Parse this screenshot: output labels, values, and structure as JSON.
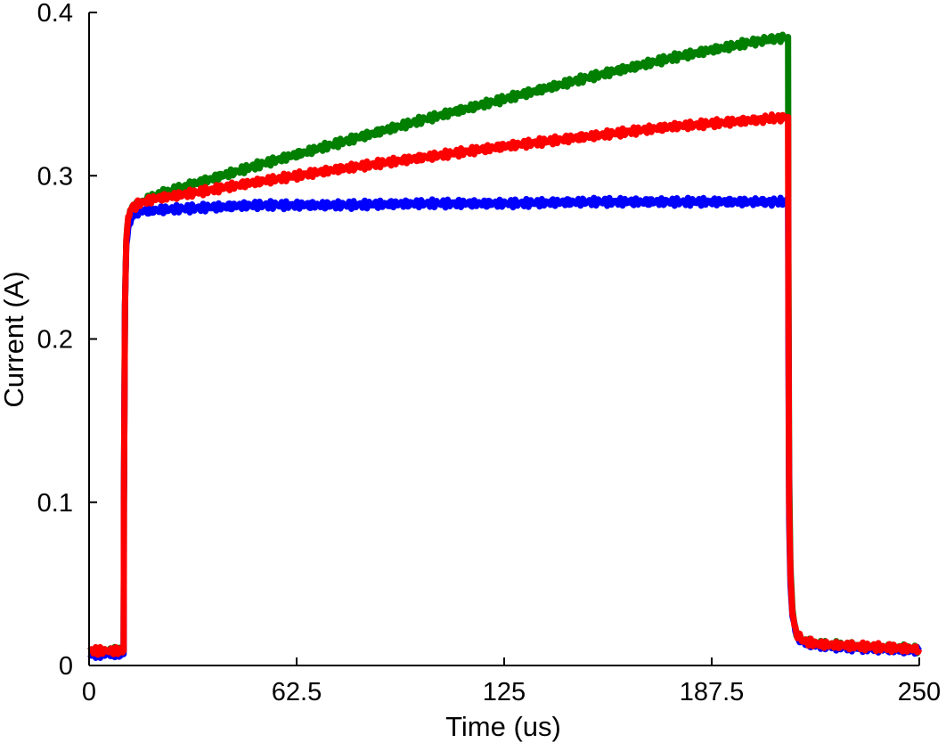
{
  "chart_data": {
    "type": "line",
    "title": "",
    "xlabel": "Time (us)",
    "ylabel": "Current (A)",
    "xlim": [
      0,
      250
    ],
    "ylim": [
      0,
      0.4
    ],
    "xticks": [
      0,
      62.5,
      125,
      187.5,
      250
    ],
    "xtick_labels": [
      "0",
      "62.5",
      "125",
      "187.5",
      "250"
    ],
    "yticks": [
      0,
      0.1,
      0.2,
      0.3,
      0.4
    ],
    "ytick_labels": [
      "0",
      "0.1",
      "0.2",
      "0.3",
      "0.4"
    ],
    "grid": false,
    "legend": "none",
    "series": [
      {
        "color": "#007f00",
        "x": [
          0,
          10.4,
          10.5,
          10.8,
          11.2,
          11.8,
          13,
          15,
          20,
          30,
          50,
          75,
          100,
          125,
          150,
          175,
          200,
          210.5,
          210.6,
          210.8,
          211.2,
          211.8,
          213,
          215,
          220,
          250
        ],
        "y": [
          0.009,
          0.009,
          0.1,
          0.22,
          0.26,
          0.273,
          0.28,
          0.283,
          0.288,
          0.294,
          0.306,
          0.32,
          0.334,
          0.347,
          0.36,
          0.372,
          0.382,
          0.385,
          0.25,
          0.12,
          0.06,
          0.035,
          0.02,
          0.015,
          0.013,
          0.01
        ]
      },
      {
        "color": "#0000ff",
        "x": [
          0,
          10.4,
          10.5,
          10.8,
          11.2,
          11.8,
          13,
          15,
          20,
          30,
          50,
          75,
          100,
          125,
          150,
          175,
          200,
          210.5,
          210.6,
          210.8,
          211.2,
          211.8,
          213,
          215,
          220,
          250
        ],
        "y": [
          0.007,
          0.007,
          0.1,
          0.22,
          0.258,
          0.27,
          0.276,
          0.278,
          0.279,
          0.28,
          0.282,
          0.282,
          0.283,
          0.283,
          0.284,
          0.284,
          0.284,
          0.284,
          0.2,
          0.09,
          0.05,
          0.03,
          0.018,
          0.014,
          0.012,
          0.009
        ]
      },
      {
        "color": "#ff0000",
        "x": [
          0,
          10.4,
          10.5,
          10.8,
          11.2,
          11.8,
          13,
          15,
          20,
          30,
          50,
          75,
          100,
          125,
          150,
          175,
          200,
          210.5,
          210.6,
          210.8,
          211.2,
          211.8,
          213,
          215,
          220,
          250
        ],
        "y": [
          0.009,
          0.009,
          0.1,
          0.22,
          0.26,
          0.273,
          0.28,
          0.283,
          0.286,
          0.289,
          0.296,
          0.304,
          0.311,
          0.318,
          0.324,
          0.33,
          0.334,
          0.336,
          0.22,
          0.1,
          0.055,
          0.032,
          0.02,
          0.015,
          0.013,
          0.01
        ]
      }
    ]
  }
}
